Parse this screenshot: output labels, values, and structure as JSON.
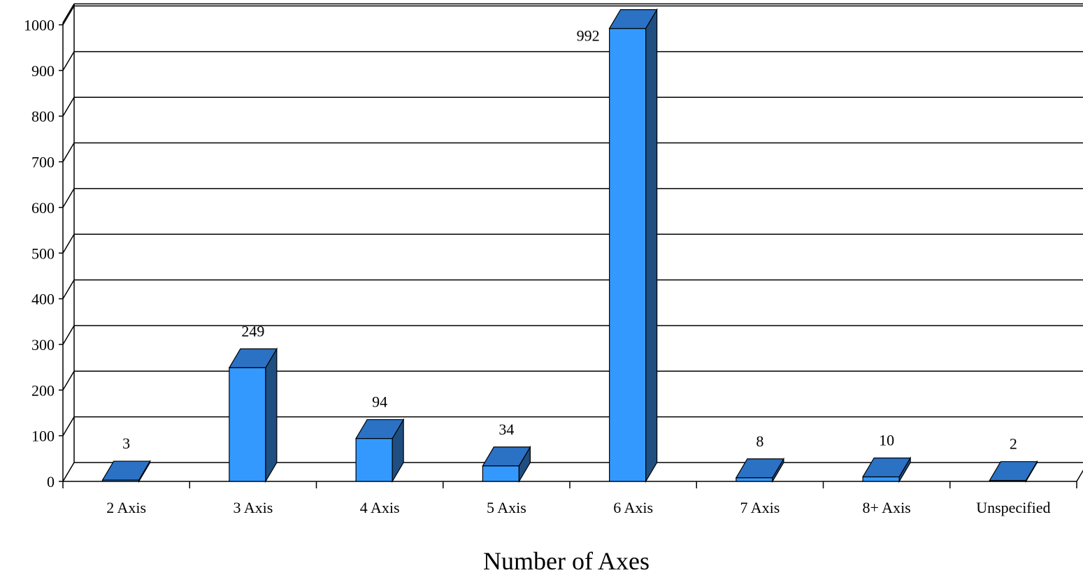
{
  "chart_data": {
    "type": "bar",
    "style": "3d-column",
    "categories": [
      "2 Axis",
      "3 Axis",
      "4 Axis",
      "5 Axis",
      "6 Axis",
      "7 Axis",
      "8+ Axis",
      "Unspecified"
    ],
    "values": [
      3,
      249,
      94,
      34,
      992,
      8,
      10,
      2
    ],
    "data_labels": [
      "3",
      "249",
      "94",
      "34",
      "992",
      "8",
      "10",
      "2"
    ],
    "title": "",
    "xlabel": "Number of Axes",
    "ylabel": "",
    "ylim": [
      0,
      1000
    ],
    "yticks": [
      "0",
      "100",
      "200",
      "300",
      "400",
      "500",
      "600",
      "700",
      "800",
      "900",
      "1000"
    ],
    "grid": true,
    "legend": "none",
    "colors": {
      "bar_front": "#3399ff",
      "bar_top": "#2b72c4",
      "bar_side": "#1f4e80",
      "gridline": "#000000"
    }
  }
}
